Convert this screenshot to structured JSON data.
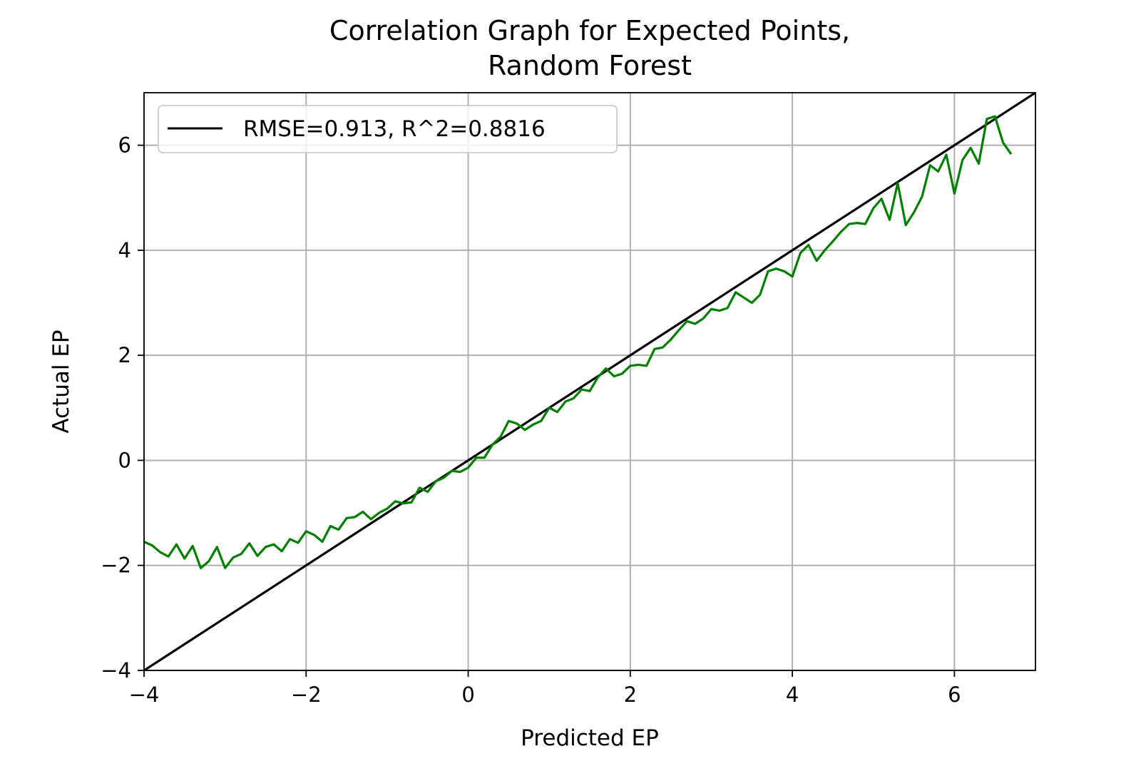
{
  "chart_data": {
    "type": "line",
    "title": [
      "Correlation Graph for Expected Points,",
      "Random Forest"
    ],
    "xlabel": "Predicted EP",
    "ylabel": "Actual EP",
    "xlim": [
      -4,
      7
    ],
    "ylim": [
      -4,
      7
    ],
    "xticks": [
      -4,
      -2,
      0,
      2,
      4,
      6
    ],
    "yticks": [
      -4,
      -2,
      0,
      2,
      4,
      6
    ],
    "xtick_labels": [
      "−4",
      "−2",
      "0",
      "2",
      "4",
      "6"
    ],
    "ytick_labels": [
      "−4",
      "−2",
      "0",
      "2",
      "4",
      "6"
    ],
    "grid": true,
    "legend_position": "top-left",
    "series": [
      {
        "name": "RMSE=0.913, R^2=0.8816",
        "color": "#000000",
        "x": [
          -4,
          7
        ],
        "y": [
          -4,
          7
        ]
      },
      {
        "color": "#007f00",
        "x": [
          -4.0,
          -3.9,
          -3.8,
          -3.7,
          -3.6,
          -3.5,
          -3.4,
          -3.3,
          -3.2,
          -3.1,
          -3.0,
          -2.9,
          -2.8,
          -2.7,
          -2.6,
          -2.5,
          -2.4,
          -2.3,
          -2.2,
          -2.1,
          -2.0,
          -1.9,
          -1.8,
          -1.7,
          -1.6,
          -1.5,
          -1.4,
          -1.3,
          -1.2,
          -1.1,
          -1.0,
          -0.9,
          -0.8,
          -0.7,
          -0.6,
          -0.5,
          -0.4,
          -0.3,
          -0.2,
          -0.1,
          0.0,
          0.1,
          0.2,
          0.3,
          0.4,
          0.5,
          0.6,
          0.7,
          0.8,
          0.9,
          1.0,
          1.1,
          1.2,
          1.3,
          1.4,
          1.5,
          1.6,
          1.7,
          1.8,
          1.9,
          2.0,
          2.1,
          2.2,
          2.3,
          2.4,
          2.5,
          2.6,
          2.7,
          2.8,
          2.9,
          3.0,
          3.1,
          3.2,
          3.3,
          3.4,
          3.5,
          3.6,
          3.7,
          3.8,
          3.9,
          4.0,
          4.1,
          4.2,
          4.3,
          4.4,
          4.5,
          4.6,
          4.7,
          4.8,
          4.9,
          5.0,
          5.1,
          5.2,
          5.3,
          5.4,
          5.5,
          5.6,
          5.7,
          5.8,
          5.9,
          6.0,
          6.1,
          6.2,
          6.3,
          6.4,
          6.5,
          6.6,
          6.7
        ],
        "y": [
          -1.55,
          -1.62,
          -1.75,
          -1.83,
          -1.6,
          -1.87,
          -1.63,
          -2.05,
          -1.92,
          -1.65,
          -2.05,
          -1.85,
          -1.78,
          -1.58,
          -1.82,
          -1.65,
          -1.6,
          -1.73,
          -1.5,
          -1.57,
          -1.35,
          -1.42,
          -1.55,
          -1.25,
          -1.32,
          -1.1,
          -1.08,
          -0.98,
          -1.12,
          -1.0,
          -0.92,
          -0.78,
          -0.82,
          -0.8,
          -0.52,
          -0.6,
          -0.4,
          -0.33,
          -0.2,
          -0.22,
          -0.14,
          0.05,
          0.05,
          0.3,
          0.45,
          0.75,
          0.7,
          0.58,
          0.68,
          0.75,
          1.0,
          0.92,
          1.12,
          1.18,
          1.35,
          1.32,
          1.58,
          1.75,
          1.6,
          1.65,
          1.8,
          1.82,
          1.8,
          2.12,
          2.15,
          2.3,
          2.48,
          2.65,
          2.6,
          2.7,
          2.88,
          2.85,
          2.9,
          3.2,
          3.1,
          3.0,
          3.15,
          3.6,
          3.65,
          3.6,
          3.5,
          3.95,
          4.1,
          3.8,
          4.0,
          4.17,
          4.35,
          4.5,
          4.52,
          4.5,
          4.8,
          4.98,
          4.58,
          5.28,
          4.48,
          4.72,
          5.02,
          5.62,
          5.5,
          5.82,
          5.08,
          5.72,
          5.95,
          5.65,
          6.5,
          6.55,
          6.05,
          5.83
        ]
      }
    ]
  }
}
